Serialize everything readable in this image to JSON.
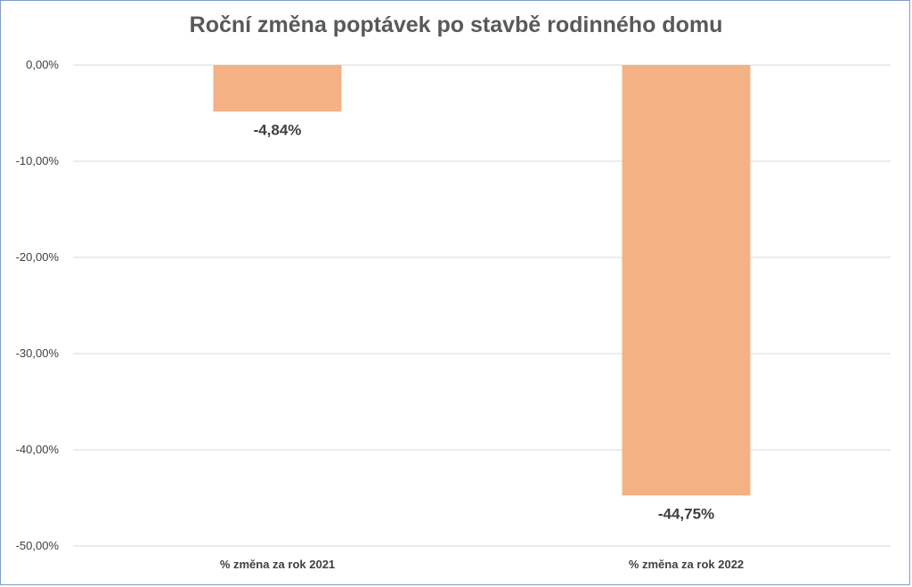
{
  "chart_data": {
    "type": "bar",
    "title": "Roční změna poptávek po stavbě rodinného domu",
    "categories": [
      "% změna za rok 2021",
      "% změna za rok 2022"
    ],
    "values": [
      -4.84,
      -44.75
    ],
    "data_labels": [
      "-4,84%",
      "-44,75%"
    ],
    "ylim": [
      -50,
      0
    ],
    "yticks": [
      0,
      -10,
      -20,
      -30,
      -40,
      -50
    ],
    "ytick_labels": [
      "0,00%",
      "-10,00%",
      "-20,00%",
      "-30,00%",
      "-40,00%",
      "-50,00%"
    ],
    "grid": true,
    "bar_color": "#f4b183",
    "xlabel": "",
    "ylabel": ""
  }
}
